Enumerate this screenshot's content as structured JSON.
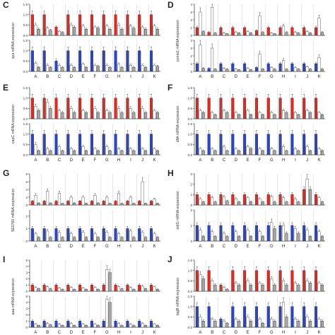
{
  "colors": {
    "red": "#d62f2a",
    "blue": "#2e46b8",
    "grey": "#a6a6a6",
    "white": "#ffffff",
    "axis": "#333333"
  },
  "x_categories": [
    "A",
    "B",
    "C",
    "D",
    "E",
    "F",
    "G",
    "H",
    "I",
    "J",
    "K"
  ],
  "chart_data": [
    {
      "panel": "C",
      "type": "bar",
      "ylabel": "spa mRNA expression",
      "categories": [
        "A",
        "B",
        "C",
        "D",
        "E",
        "F",
        "G",
        "H",
        "I",
        "J",
        "K"
      ],
      "top": {
        "ylim": [
          0,
          1.5
        ],
        "ticks": [
          "0.0",
          "0.5",
          "1.0",
          "1.5"
        ],
        "color": "red",
        "series": [
          [
            1.0,
            0.5,
            0.3
          ],
          [
            1.0,
            0.35,
            0.25
          ],
          [
            0.4,
            0.2,
            0.15
          ],
          [
            1.0,
            0.5,
            0.4
          ],
          [
            1.0,
            0.45,
            0.3
          ],
          [
            1.0,
            0.4,
            0.35
          ],
          [
            1.0,
            0.45,
            0.3
          ],
          [
            1.0,
            0.5,
            0.3
          ],
          [
            1.0,
            0.45,
            0.35
          ],
          [
            1.0,
            0.4,
            0.3
          ],
          [
            1.0,
            0.45,
            0.3
          ]
        ]
      },
      "bottom": {
        "ylim": [
          0,
          1.5
        ],
        "ticks": [
          "0.0",
          "0.5",
          "1.0",
          "1.5"
        ],
        "color": "blue",
        "series": [
          [
            1.0,
            0.4,
            0.2
          ],
          [
            1.0,
            0.3,
            0.2
          ],
          [
            0.5,
            0.3,
            0.2
          ],
          [
            1.0,
            0.3,
            0.2
          ],
          [
            1.0,
            0.35,
            0.2
          ],
          [
            1.0,
            0.3,
            0.25
          ],
          [
            1.0,
            0.3,
            0.2
          ],
          [
            1.0,
            0.35,
            0.2
          ],
          [
            1.0,
            0.3,
            0.2
          ],
          [
            1.0,
            0.3,
            0.2
          ],
          [
            1.0,
            0.3,
            0.25
          ]
        ]
      }
    },
    {
      "panel": "D",
      "type": "bar",
      "ylabel": "psmα1 mRNA expression",
      "categories": [
        "A",
        "B",
        "C",
        "D",
        "E",
        "F",
        "G",
        "H",
        "I",
        "J",
        "K"
      ],
      "top": {
        "ylim": [
          0,
          4
        ],
        "ticks": [
          "0",
          "1",
          "2",
          "3",
          "4"
        ],
        "color": "red",
        "series": [
          [
            1.0,
            3.0,
            0.5
          ],
          [
            0.4,
            3.6,
            0.3
          ],
          [
            1.0,
            0.3,
            0.2
          ],
          [
            1.0,
            0.4,
            0.3
          ],
          [
            1.0,
            0.5,
            0.3
          ],
          [
            0.6,
            2.5,
            0.4
          ],
          [
            1.0,
            0.3,
            0.2
          ],
          [
            1.0,
            1.2,
            0.4
          ],
          [
            1.0,
            0.4,
            0.3
          ],
          [
            1.0,
            0.5,
            0.3
          ],
          [
            1.0,
            2.2,
            0.4
          ]
        ]
      },
      "bottom": {
        "ylim": [
          0,
          4
        ],
        "ticks": [
          "0",
          "1",
          "2",
          "3",
          "4"
        ],
        "color": "blue",
        "series": [
          [
            1.0,
            3.4,
            0.4
          ],
          [
            0.4,
            3.0,
            0.3
          ],
          [
            1.0,
            0.4,
            0.3
          ],
          [
            1.0,
            0.3,
            0.2
          ],
          [
            1.0,
            0.4,
            0.2
          ],
          [
            0.5,
            2.2,
            0.3
          ],
          [
            1.0,
            0.5,
            0.3
          ],
          [
            1.0,
            1.4,
            0.3
          ],
          [
            1.0,
            0.5,
            0.3
          ],
          [
            1.0,
            0.6,
            0.3
          ],
          [
            1.0,
            1.8,
            0.3
          ]
        ]
      }
    },
    {
      "panel": "E",
      "type": "bar",
      "ylabel": "capC mRNA expression",
      "categories": [
        "A",
        "B",
        "C",
        "D",
        "E",
        "F",
        "G",
        "H",
        "I",
        "J",
        "K"
      ],
      "top": {
        "ylim": [
          0,
          1.5
        ],
        "ticks": [
          "0.0",
          "0.5",
          "1.0",
          "1.5"
        ],
        "color": "red",
        "series": [
          [
            1.0,
            0.6,
            0.4
          ],
          [
            1.0,
            0.8,
            0.5
          ],
          [
            1.0,
            0.4,
            0.3
          ],
          [
            1.0,
            0.5,
            0.3
          ],
          [
            1.0,
            0.4,
            0.3
          ],
          [
            1.0,
            0.5,
            0.3
          ],
          [
            1.0,
            0.4,
            0.3
          ],
          [
            1.0,
            0.5,
            0.3
          ],
          [
            1.0,
            0.5,
            0.3
          ],
          [
            1.0,
            0.5,
            0.3
          ],
          [
            1.0,
            0.4,
            0.3
          ]
        ]
      },
      "bottom": {
        "ylim": [
          0,
          1.5
        ],
        "ticks": [
          "0.0",
          "0.5",
          "1.0",
          "1.5"
        ],
        "color": "blue",
        "series": [
          [
            1.0,
            0.5,
            0.2
          ],
          [
            1.0,
            0.3,
            0.2
          ],
          [
            1.0,
            0.4,
            0.2
          ],
          [
            1.0,
            0.3,
            0.2
          ],
          [
            1.0,
            0.4,
            0.2
          ],
          [
            1.0,
            0.3,
            0.2
          ],
          [
            1.0,
            0.4,
            0.2
          ],
          [
            1.0,
            0.3,
            0.2
          ],
          [
            1.0,
            0.3,
            0.2
          ],
          [
            1.0,
            0.3,
            0.2
          ],
          [
            1.0,
            0.3,
            0.2
          ]
        ]
      }
    },
    {
      "panel": "F",
      "type": "bar",
      "ylabel": "dltA mRNA expression",
      "categories": [
        "A",
        "B",
        "C",
        "D",
        "E",
        "F",
        "G",
        "H",
        "I",
        "J",
        "K"
      ],
      "top": {
        "ylim": [
          0,
          1.5
        ],
        "ticks": [
          "0.0",
          "0.5",
          "1.0",
          "1.5"
        ],
        "color": "red",
        "series": [
          [
            1.0,
            0.4,
            0.3
          ],
          [
            1.0,
            0.3,
            0.2
          ],
          [
            1.0,
            0.4,
            0.3
          ],
          [
            1.0,
            0.3,
            0.2
          ],
          [
            1.0,
            0.4,
            0.2
          ],
          [
            1.0,
            0.3,
            0.2
          ],
          [
            1.0,
            0.3,
            0.2
          ],
          [
            1.0,
            0.4,
            0.3
          ],
          [
            1.0,
            0.3,
            0.2
          ],
          [
            1.0,
            0.4,
            0.3
          ],
          [
            1.0,
            0.3,
            0.2
          ]
        ]
      },
      "bottom": {
        "ylim": [
          0,
          1.5
        ],
        "ticks": [
          "0.0",
          "0.5",
          "1.0",
          "1.5"
        ],
        "color": "blue",
        "series": [
          [
            1.0,
            0.3,
            0.2
          ],
          [
            1.0,
            0.3,
            0.2
          ],
          [
            1.0,
            0.4,
            0.2
          ],
          [
            1.0,
            0.3,
            0.2
          ],
          [
            1.0,
            0.4,
            0.3
          ],
          [
            1.0,
            0.3,
            0.2
          ],
          [
            1.0,
            0.3,
            0.2
          ],
          [
            1.0,
            0.4,
            0.2
          ],
          [
            1.0,
            0.3,
            0.2
          ],
          [
            1.0,
            0.4,
            0.2
          ],
          [
            1.0,
            0.3,
            0.2
          ]
        ]
      }
    },
    {
      "panel": "G",
      "type": "bar",
      "ylabel": "SE0760 mRNA expression",
      "categories": [
        "A",
        "B",
        "C",
        "D",
        "E",
        "F",
        "G",
        "H",
        "I",
        "J",
        "K"
      ],
      "top": {
        "ylim": [
          0,
          8
        ],
        "ticks": [
          "0",
          "2",
          "4",
          "6",
          "8"
        ],
        "color": "red",
        "series": [
          [
            1.0,
            2.5,
            0.5
          ],
          [
            1.0,
            3.5,
            0.5
          ],
          [
            1.0,
            3.0,
            0.4
          ],
          [
            1.0,
            2.0,
            0.5
          ],
          [
            1.0,
            2.0,
            0.4
          ],
          [
            1.0,
            2.5,
            0.5
          ],
          [
            1.0,
            2.0,
            0.4
          ],
          [
            1.0,
            3.0,
            0.4
          ],
          [
            1.0,
            2.0,
            0.4
          ],
          [
            1.0,
            6.0,
            0.4
          ],
          [
            1.0,
            1.5,
            0.4
          ]
        ]
      },
      "bottom": {
        "ylim": [
          0,
          2.5
        ],
        "ticks": [
          "0",
          "1",
          "2"
        ],
        "color": "blue",
        "series": [
          [
            1.0,
            0.6,
            0.3
          ],
          [
            1.0,
            0.8,
            0.3
          ],
          [
            1.0,
            0.7,
            0.3
          ],
          [
            1.0,
            0.6,
            0.3
          ],
          [
            1.0,
            0.7,
            0.3
          ],
          [
            1.0,
            0.6,
            0.3
          ],
          [
            1.0,
            0.7,
            0.3
          ],
          [
            1.0,
            0.6,
            0.3
          ],
          [
            1.0,
            0.8,
            0.3
          ],
          [
            1.0,
            0.7,
            0.3
          ],
          [
            1.0,
            0.6,
            0.3
          ]
        ]
      }
    },
    {
      "panel": "H",
      "type": "bar",
      "ylabel": "sdrG mRNA expression",
      "categories": [
        "A",
        "B",
        "C",
        "D",
        "E",
        "F",
        "G",
        "H",
        "I",
        "J",
        "K"
      ],
      "top": {
        "ylim": [
          0,
          3
        ],
        "ticks": [
          "0",
          "1",
          "2",
          "3"
        ],
        "color": "red",
        "series": [
          [
            1.0,
            0.6,
            0.3
          ],
          [
            1.0,
            0.7,
            0.3
          ],
          [
            1.0,
            0.8,
            0.4
          ],
          [
            1.0,
            0.6,
            0.3
          ],
          [
            1.0,
            0.7,
            0.3
          ],
          [
            1.0,
            0.6,
            0.3
          ],
          [
            1.0,
            0.8,
            0.3
          ],
          [
            1.0,
            0.7,
            0.3
          ],
          [
            1.0,
            0.6,
            0.3
          ],
          [
            1.5,
            2.5,
            1.5
          ],
          [
            1.0,
            0.7,
            0.3
          ]
        ]
      },
      "bottom": {
        "ylim": [
          0,
          2
        ],
        "ticks": [
          "0",
          "1",
          "2"
        ],
        "color": "blue",
        "series": [
          [
            1.0,
            0.7,
            0.3
          ],
          [
            1.0,
            0.6,
            0.3
          ],
          [
            1.0,
            0.5,
            0.3
          ],
          [
            1.0,
            0.6,
            0.3
          ],
          [
            1.0,
            0.7,
            0.3
          ],
          [
            1.0,
            0.6,
            0.3
          ],
          [
            1.0,
            1.2,
            0.8
          ],
          [
            1.0,
            1.0,
            0.5
          ],
          [
            1.0,
            0.8,
            0.5
          ],
          [
            1.0,
            0.7,
            0.3
          ],
          [
            1.0,
            0.6,
            0.3
          ]
        ]
      }
    },
    {
      "panel": "I",
      "type": "bar",
      "ylabel": "aaa mRNA expression",
      "categories": [
        "A",
        "B",
        "C",
        "D",
        "E",
        "F",
        "G",
        "H",
        "I",
        "J",
        "K"
      ],
      "top": {
        "ylim": [
          0,
          5
        ],
        "ticks": [
          "0",
          "1",
          "2",
          "3",
          "4",
          "5"
        ],
        "color": "red",
        "series": [
          [
            1.0,
            0.6,
            0.4
          ],
          [
            1.0,
            0.7,
            0.4
          ],
          [
            1.0,
            0.5,
            0.3
          ],
          [
            1.0,
            0.6,
            0.3
          ],
          [
            1.0,
            0.5,
            0.3
          ],
          [
            1.0,
            0.6,
            0.3
          ],
          [
            1.0,
            3.5,
            3.0
          ],
          [
            1.0,
            0.7,
            0.4
          ],
          [
            1.0,
            0.6,
            0.3
          ],
          [
            1.0,
            0.8,
            0.4
          ],
          [
            1.0,
            0.7,
            0.3
          ]
        ]
      },
      "bottom": {
        "ylim": [
          0,
          5
        ],
        "ticks": [
          "0",
          "1",
          "2",
          "3",
          "4",
          "5"
        ],
        "color": "blue",
        "series": [
          [
            1.0,
            0.5,
            0.3
          ],
          [
            1.0,
            0.6,
            0.4
          ],
          [
            1.0,
            0.5,
            0.3
          ],
          [
            1.0,
            0.6,
            0.3
          ],
          [
            1.0,
            0.5,
            0.3
          ],
          [
            1.0,
            0.5,
            0.3
          ],
          [
            1.0,
            4.5,
            4.0
          ],
          [
            1.0,
            0.6,
            0.3
          ],
          [
            1.0,
            0.5,
            0.3
          ],
          [
            1.0,
            0.6,
            0.3
          ],
          [
            1.0,
            0.5,
            0.3
          ]
        ]
      }
    },
    {
      "panel": "J",
      "type": "bar",
      "ylabel": "tagB mRNA expression",
      "categories": [
        "A",
        "B",
        "C",
        "D",
        "E",
        "F",
        "G",
        "H",
        "I",
        "J",
        "K"
      ],
      "top": {
        "ylim": [
          0,
          1.5
        ],
        "ticks": [
          "0.0",
          "0.5",
          "1.0",
          "1.5"
        ],
        "color": "red",
        "series": [
          [
            1.0,
            0.8,
            0.6
          ],
          [
            1.0,
            0.5,
            0.3
          ],
          [
            0.3,
            0.2,
            0.1
          ],
          [
            1.0,
            0.4,
            0.3
          ],
          [
            1.0,
            0.5,
            0.3
          ],
          [
            1.0,
            0.4,
            0.3
          ],
          [
            1.0,
            0.6,
            0.3
          ],
          [
            1.0,
            0.5,
            0.3
          ],
          [
            1.0,
            0.4,
            0.3
          ],
          [
            1.0,
            0.5,
            0.4
          ],
          [
            1.0,
            0.4,
            0.3
          ]
        ]
      },
      "bottom": {
        "ylim": [
          0,
          1.5
        ],
        "ticks": [
          "0.0",
          "0.5",
          "1.0",
          "1.5"
        ],
        "color": "blue",
        "series": [
          [
            1.0,
            0.5,
            0.3
          ],
          [
            1.0,
            0.4,
            0.3
          ],
          [
            0.4,
            0.3,
            0.2
          ],
          [
            1.0,
            0.4,
            0.3
          ],
          [
            1.0,
            0.5,
            0.3
          ],
          [
            1.0,
            0.4,
            0.2
          ],
          [
            1.0,
            0.4,
            0.3
          ],
          [
            1.0,
            1.2,
            0.5
          ],
          [
            1.0,
            0.4,
            0.3
          ],
          [
            1.0,
            0.5,
            0.3
          ],
          [
            1.0,
            0.4,
            0.3
          ]
        ]
      }
    }
  ]
}
